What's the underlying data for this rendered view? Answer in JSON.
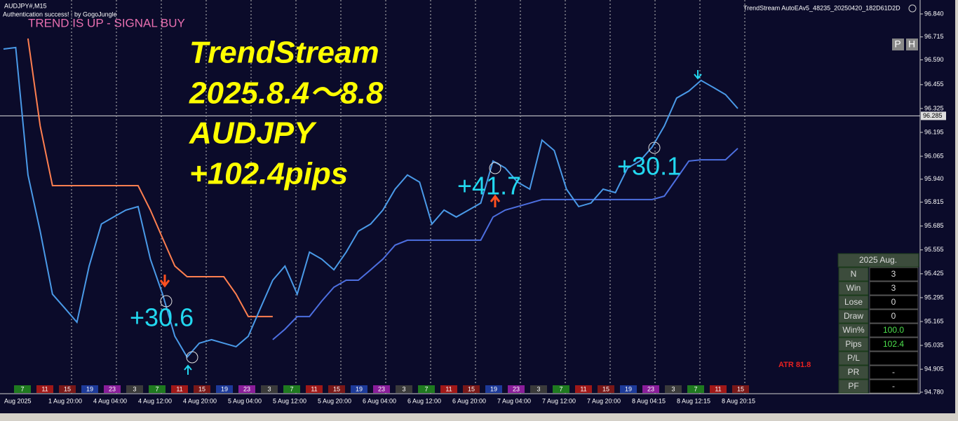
{
  "header": {
    "symbol": "AUDJPY#,M15",
    "auth": "Authentication success! : by GogoJungle",
    "ea_name": "TrendStream AutoEAv5_48235_20250420_182D61D2D",
    "buttons": [
      "P",
      "H"
    ]
  },
  "overlay": {
    "signal": "TREND IS UP - SIGNAL BUY",
    "title_lines": [
      "TrendStream",
      "2025.8.4～8.8",
      "AUDJPY",
      "+102.4pips"
    ],
    "trade_labels": [
      "+30.6",
      "+41.7",
      "+30.1"
    ],
    "atr": "ATR 81.8"
  },
  "price_axis": {
    "ylim": [
      94.772,
      96.916
    ],
    "yticks": [
      {
        "value": 96.84,
        "label": "96.840"
      },
      {
        "value": 96.715,
        "label": "96.715"
      },
      {
        "value": 96.59,
        "label": "96.590"
      },
      {
        "value": 96.455,
        "label": "96.455"
      },
      {
        "value": 96.325,
        "label": "96.325"
      },
      {
        "value": 96.195,
        "label": "96.195"
      },
      {
        "value": 96.065,
        "label": "96.065"
      },
      {
        "value": 95.94,
        "label": "95.940"
      },
      {
        "value": 95.815,
        "label": "95.815"
      },
      {
        "value": 95.685,
        "label": "95.685"
      },
      {
        "value": 95.555,
        "label": "95.555"
      },
      {
        "value": 95.425,
        "label": "95.425"
      },
      {
        "value": 95.295,
        "label": "95.295"
      },
      {
        "value": 95.165,
        "label": "95.165"
      },
      {
        "value": 95.035,
        "label": "95.035"
      },
      {
        "value": 94.905,
        "label": "94.905"
      },
      {
        "value": 94.78,
        "label": "94.780"
      }
    ],
    "current": {
      "value": 96.285,
      "label": "96.285"
    }
  },
  "time_axis": [
    "Aug 2025",
    "1 Aug 20:00",
    "4 Aug 04:00",
    "4 Aug 12:00",
    "4 Aug 20:00",
    "5 Aug 04:00",
    "5 Aug 12:00",
    "5 Aug 20:00",
    "6 Aug 04:00",
    "6 Aug 12:00",
    "6 Aug 20:00",
    "7 Aug 04:00",
    "7 Aug 12:00",
    "7 Aug 20:00",
    "8 Aug 04:15",
    "8 Aug 12:15",
    "8 Aug 20:15"
  ],
  "price": [
    96.649,
    96.657,
    95.963,
    95.657,
    95.314,
    95.238,
    95.161,
    95.467,
    95.696,
    95.734,
    95.772,
    95.791,
    95.505,
    95.314,
    95.085,
    94.971,
    95.047,
    95.066,
    95.047,
    95.028,
    95.085,
    95.238,
    95.39,
    95.467,
    95.314,
    95.543,
    95.505,
    95.447,
    95.543,
    95.657,
    95.696,
    95.772,
    95.886,
    95.963,
    95.924,
    95.696,
    95.772,
    95.734,
    95.772,
    95.81,
    96.039,
    96.001,
    95.924,
    95.886,
    96.153,
    96.096,
    95.886,
    95.791,
    95.81,
    95.886,
    95.867,
    96.001,
    96.039,
    96.115,
    96.23,
    96.382,
    96.42,
    96.478,
    96.44,
    96.401,
    96.325
  ],
  "trail_down": [
    null,
    null,
    96.706,
    96.23,
    95.905,
    95.905,
    95.905,
    95.905,
    95.905,
    95.905,
    95.905,
    95.905,
    95.772,
    95.619,
    95.467,
    95.409,
    95.409,
    95.409,
    95.409,
    95.314,
    95.192,
    95.192,
    95.192,
    null,
    null,
    null,
    null,
    null,
    null,
    null,
    null,
    null,
    null,
    null,
    null,
    null,
    null,
    null,
    null,
    null,
    null,
    null,
    null,
    null,
    null,
    null,
    null,
    null,
    null,
    null,
    null,
    null,
    null,
    null,
    null,
    null,
    null,
    null,
    null,
    null,
    null
  ],
  "trail_up": [
    null,
    null,
    null,
    null,
    null,
    null,
    null,
    null,
    null,
    null,
    null,
    null,
    null,
    null,
    null,
    null,
    null,
    null,
    null,
    null,
    null,
    null,
    95.066,
    95.123,
    95.192,
    95.192,
    95.276,
    95.352,
    95.39,
    95.39,
    95.447,
    95.505,
    95.581,
    95.608,
    95.608,
    95.608,
    95.608,
    95.608,
    95.608,
    95.608,
    95.734,
    95.772,
    95.791,
    95.81,
    95.829,
    95.829,
    95.829,
    95.829,
    95.829,
    95.829,
    95.829,
    95.829,
    95.829,
    95.829,
    95.848,
    95.943,
    96.039,
    96.046,
    96.046,
    96.046,
    96.108
  ],
  "hour_strip": {
    "labels": [
      "7",
      "11",
      "15",
      "19",
      "23",
      "3",
      "7",
      "11",
      "15",
      "19",
      "23",
      "3",
      "7",
      "11",
      "15",
      "19",
      "23",
      "3",
      "7",
      "11",
      "15",
      "19",
      "23",
      "3",
      "7",
      "11",
      "15",
      "19",
      "23",
      "3",
      "7",
      "11",
      "15"
    ],
    "colors": {
      "7": "#1f7a1f",
      "11": "#a01818",
      "15": "#7a1818",
      "19": "#1d3a9a",
      "23": "#8a1d9a",
      "3": "#3a3a3a"
    }
  },
  "stats": {
    "title": "2025 Aug.",
    "rows": [
      [
        "N",
        "3"
      ],
      [
        "Win",
        "3"
      ],
      [
        "Lose",
        "0"
      ],
      [
        "Draw",
        "0"
      ],
      [
        "Win%",
        "100.0"
      ],
      [
        "Pips",
        "102.4"
      ],
      [
        "P/L"
      ],
      [
        "PR",
        "-"
      ],
      [
        "PF",
        "-"
      ]
    ]
  }
}
